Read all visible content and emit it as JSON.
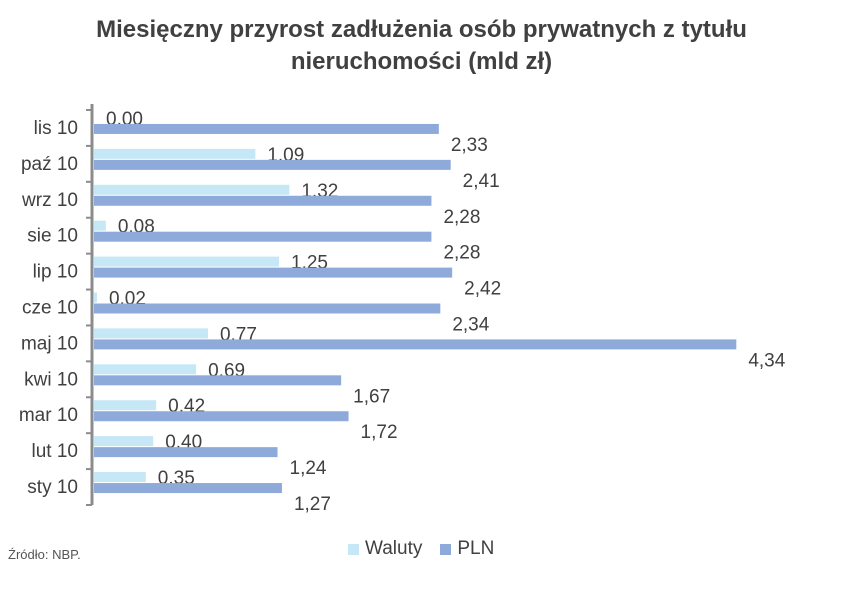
{
  "chart_data": {
    "type": "bar",
    "orientation": "horizontal",
    "title_line1": "Miesięczny przyrost zadłużenia osób prywatnych z tytułu",
    "title_line2": "nieruchomości (mld zł)",
    "categories": [
      "lis 10",
      "paź 10",
      "wrz 10",
      "sie 10",
      "lip 10",
      "cze 10",
      "maj 10",
      "kwi 10",
      "mar 10",
      "lut 10",
      "sty 10"
    ],
    "series": [
      {
        "name": "Waluty",
        "color": "#c6e7f5",
        "values": [
          0.0,
          1.09,
          1.32,
          0.08,
          1.25,
          0.02,
          0.77,
          0.69,
          0.42,
          0.4,
          0.35
        ],
        "labels": [
          "0,00",
          "1,09",
          "1,32",
          "0,08",
          "1,25",
          "0,02",
          "0,77",
          "0,69",
          "0,42",
          "0,40",
          "0,35"
        ]
      },
      {
        "name": "PLN",
        "color": "#8eaadb",
        "values": [
          2.33,
          2.41,
          2.28,
          2.28,
          2.42,
          2.34,
          4.34,
          1.67,
          1.72,
          1.24,
          1.27
        ],
        "labels": [
          "2,33",
          "2,41",
          "2,28",
          "2,28",
          "2,42",
          "2,34",
          "4,34",
          "1,67",
          "1,72",
          "1,24",
          "1,27"
        ]
      }
    ],
    "xlim": [
      0,
      4.6
    ],
    "grid": false,
    "legend_position": "bottom",
    "source": "Źródło: NBP."
  }
}
